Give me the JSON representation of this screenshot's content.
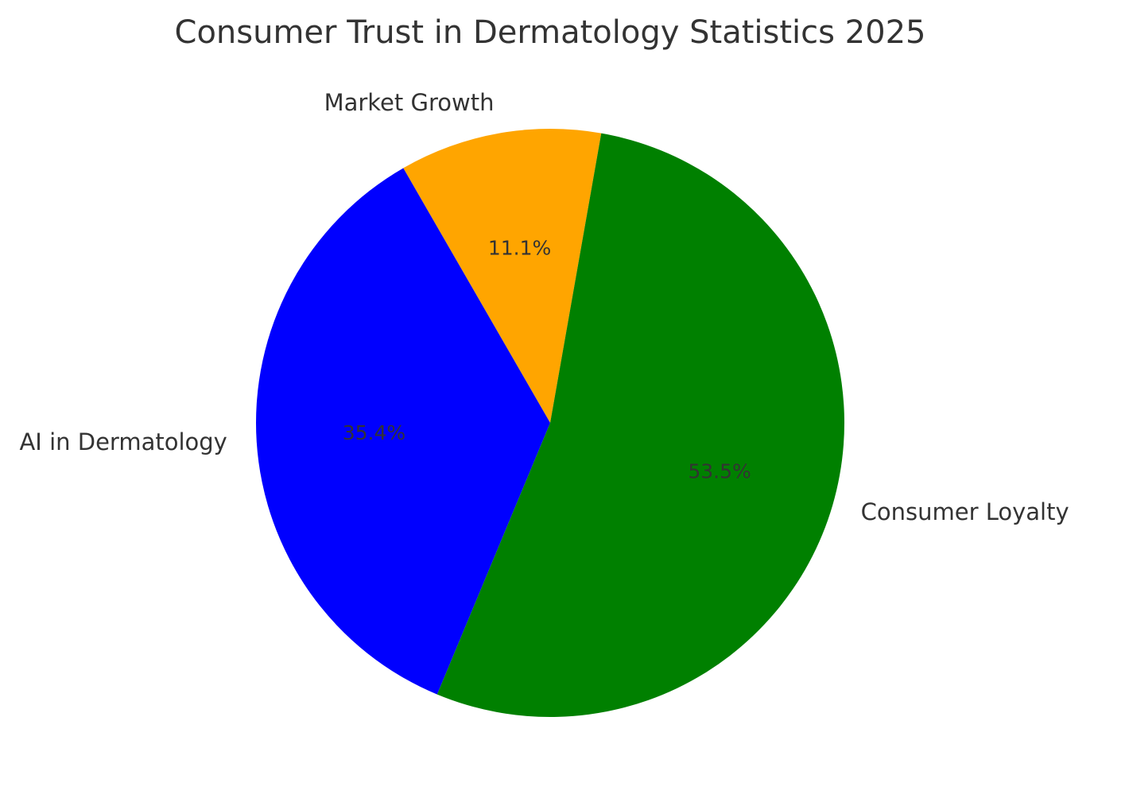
{
  "chart_data": {
    "type": "pie",
    "title": "Consumer Trust in Dermatology Statistics 2025",
    "start_angle_deg": 80,
    "direction": "counterclockwise",
    "slices": [
      {
        "label": "Market Growth",
        "value": 11.1,
        "pct_text": "11.1%",
        "color": "#ffa500"
      },
      {
        "label": "AI in Dermatology",
        "value": 35.4,
        "pct_text": "35.4%",
        "color": "#0000ff"
      },
      {
        "label": "Consumer Loyalty",
        "value": 53.5,
        "pct_text": "53.5%",
        "color": "#008000"
      }
    ]
  }
}
